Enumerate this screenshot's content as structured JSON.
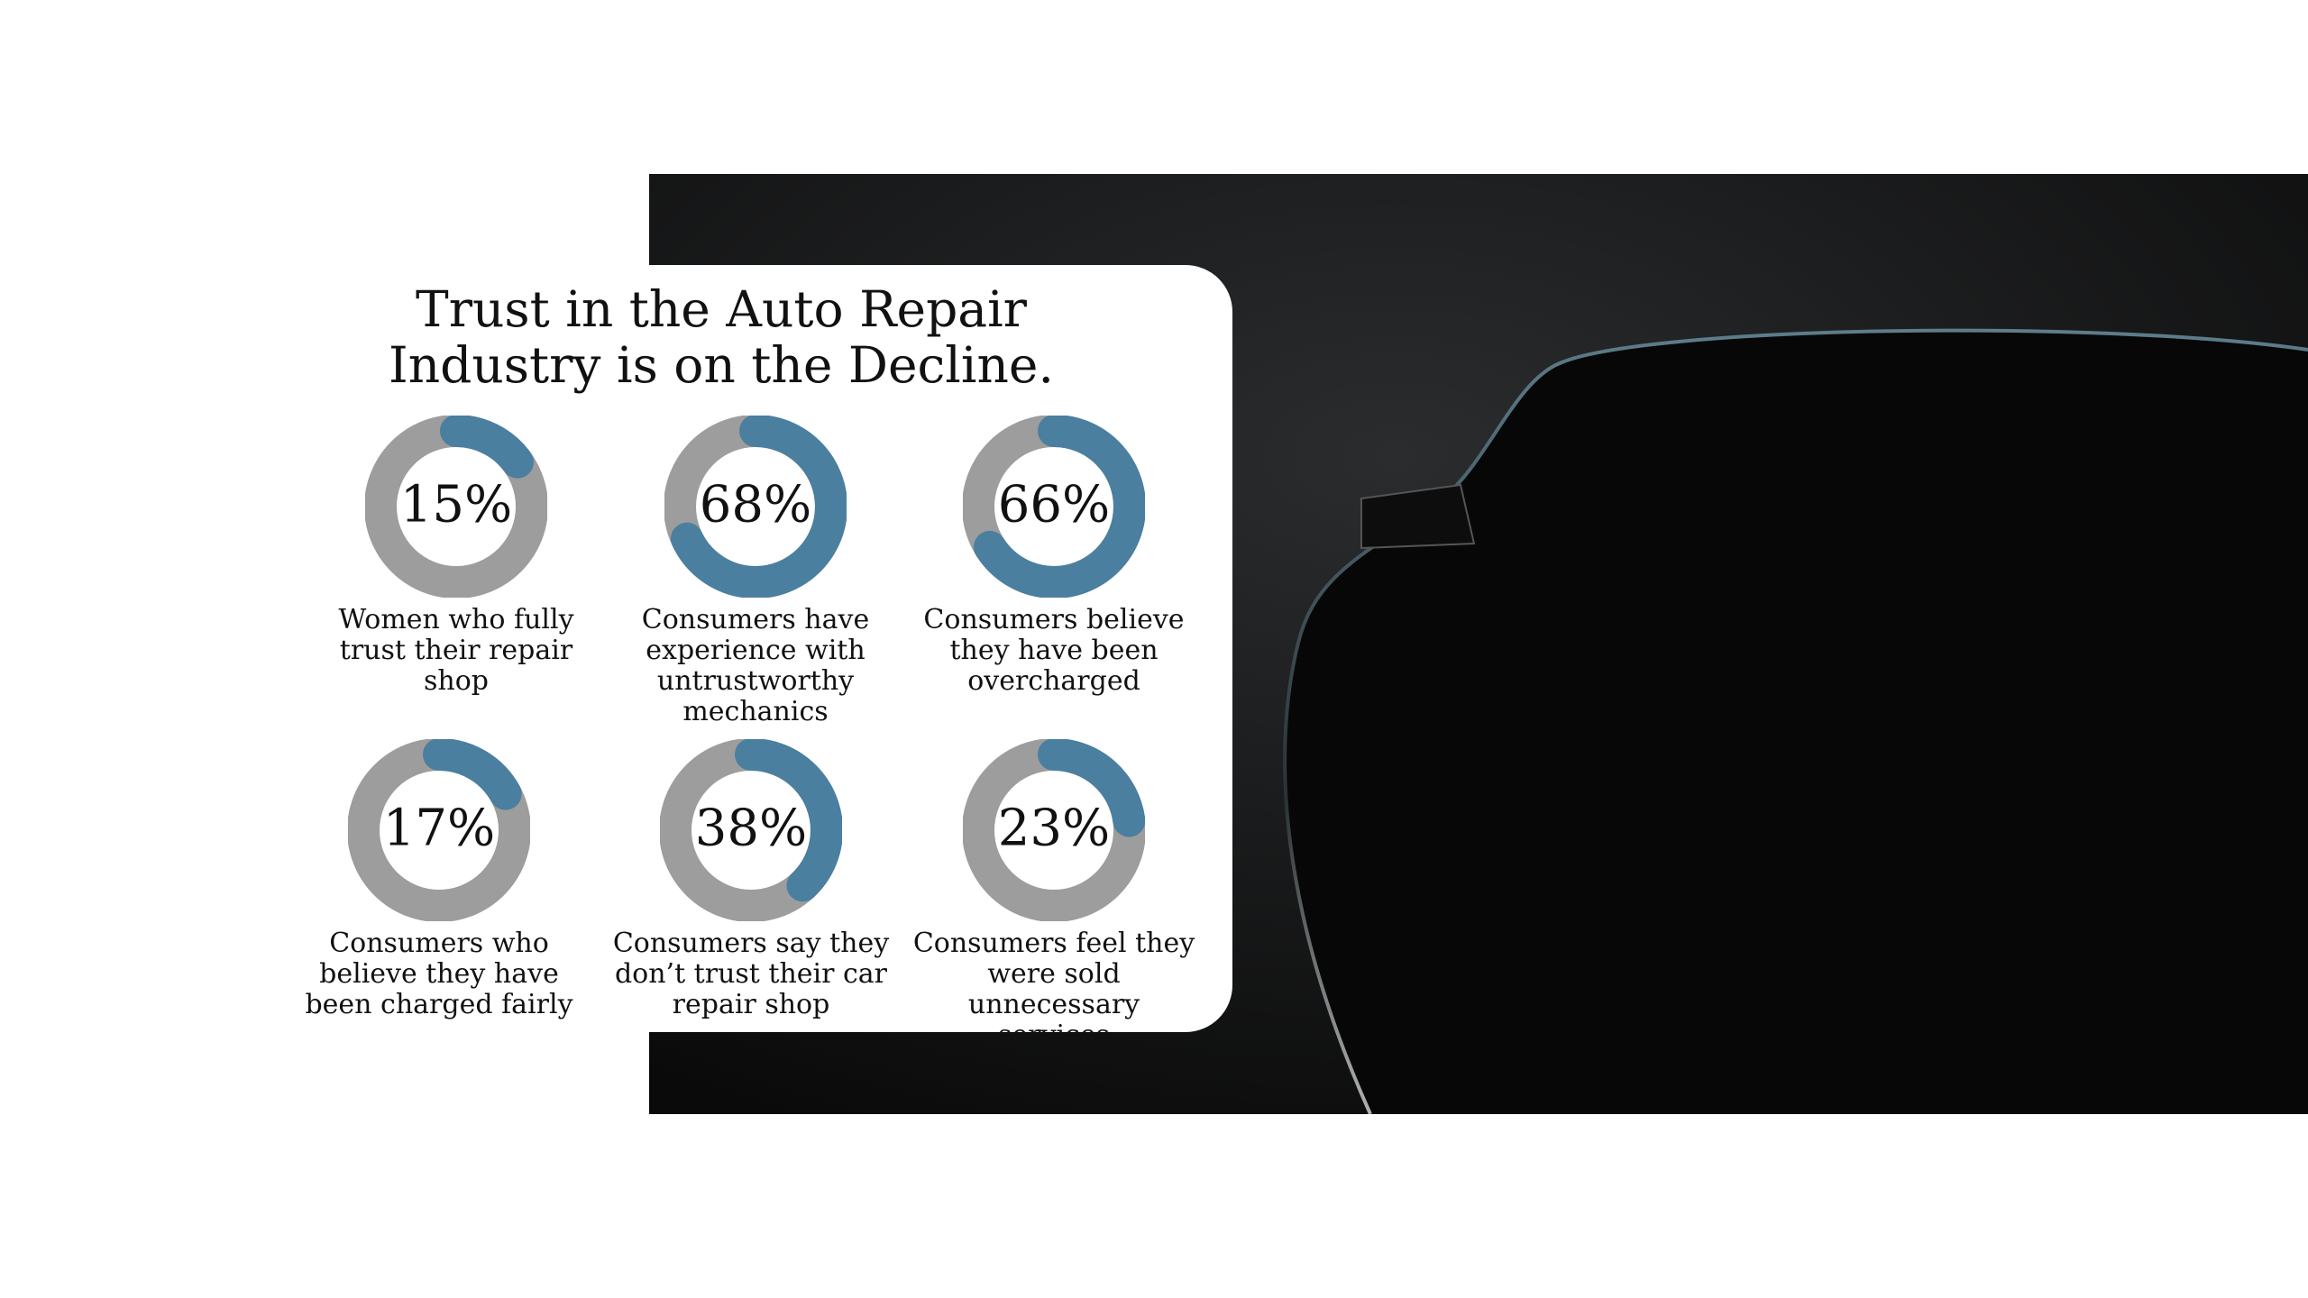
{
  "title": "Trust in the Auto Repair Industry is on the Decline.",
  "chart_data": [
    {
      "type": "donut",
      "values": [
        15
      ],
      "value_labels": [
        "15%"
      ],
      "label": "Women who fully trust their repair shop",
      "color": "#4a7fa0",
      "track_color": "#9d9d9d"
    },
    {
      "type": "donut",
      "values": [
        68
      ],
      "value_labels": [
        "68%"
      ],
      "label": "Consumers have experience with untrustworthy mechanics",
      "color": "#4a7fa0",
      "track_color": "#9d9d9d"
    },
    {
      "type": "donut",
      "values": [
        66
      ],
      "value_labels": [
        "66%"
      ],
      "label": "Consumers believe they have been overcharged",
      "color": "#4a7fa0",
      "track_color": "#9d9d9d"
    },
    {
      "type": "donut",
      "values": [
        17
      ],
      "value_labels": [
        "17%"
      ],
      "label": "Consumers who believe they have been charged fairly",
      "color": "#4a7fa0",
      "track_color": "#9d9d9d"
    },
    {
      "type": "donut",
      "values": [
        38
      ],
      "value_labels": [
        "38%"
      ],
      "label": "Consumers say they don’t trust their car repair shop",
      "color": "#4a7fa0",
      "track_color": "#9d9d9d"
    },
    {
      "type": "donut",
      "values": [
        23
      ],
      "value_labels": [
        "23%"
      ],
      "label": "Consumers feel they were sold unnecessary services",
      "color": "#4a7fa0",
      "track_color": "#9d9d9d"
    }
  ]
}
